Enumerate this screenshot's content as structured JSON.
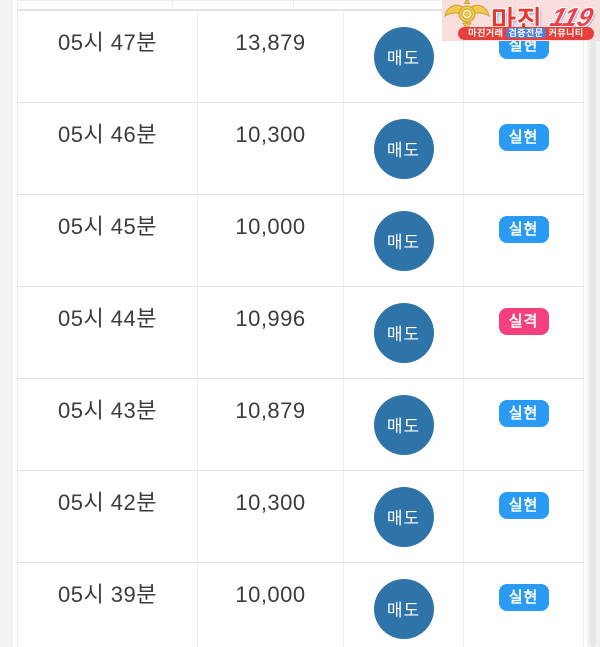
{
  "page": {
    "background": "#f2f2f2"
  },
  "logo": {
    "emblem_icon": "police-badge-icon",
    "title": "마진",
    "title_suffix": "119",
    "tagline_left": "마진거래",
    "tagline_mid": "검증전문",
    "tagline_right": "커뮤니티",
    "colors": {
      "background": "#f9dede",
      "title": "#e5392f",
      "suffix": "#ee404a",
      "banner": "#e7403c",
      "banner_chip": "#4d7fd8",
      "emblem_gold": "#f2cb4e"
    }
  },
  "table": {
    "columns": [
      "time",
      "price",
      "action",
      "status"
    ],
    "rows": [
      {
        "time": "05시 47분",
        "price": "13,879",
        "action": "매도",
        "status": "실현",
        "status_type": "realized"
      },
      {
        "time": "05시 46분",
        "price": "10,300",
        "action": "매도",
        "status": "실현",
        "status_type": "realized"
      },
      {
        "time": "05시 45분",
        "price": "10,000",
        "action": "매도",
        "status": "실현",
        "status_type": "realized"
      },
      {
        "time": "05시 44분",
        "price": "10,996",
        "action": "매도",
        "status": "실격",
        "status_type": "disqualified"
      },
      {
        "time": "05시 43분",
        "price": "10,879",
        "action": "매도",
        "status": "실현",
        "status_type": "realized"
      },
      {
        "time": "05시 42분",
        "price": "10,300",
        "action": "매도",
        "status": "실현",
        "status_type": "realized"
      },
      {
        "time": "05시 39분",
        "price": "10,000",
        "action": "매도",
        "status": "실현",
        "status_type": "realized"
      }
    ],
    "colors": {
      "action_button": "#2f74a8",
      "status_realized": "#2b9af3",
      "status_disqualified": "#f4417e",
      "border": "#e3e3e3"
    }
  }
}
